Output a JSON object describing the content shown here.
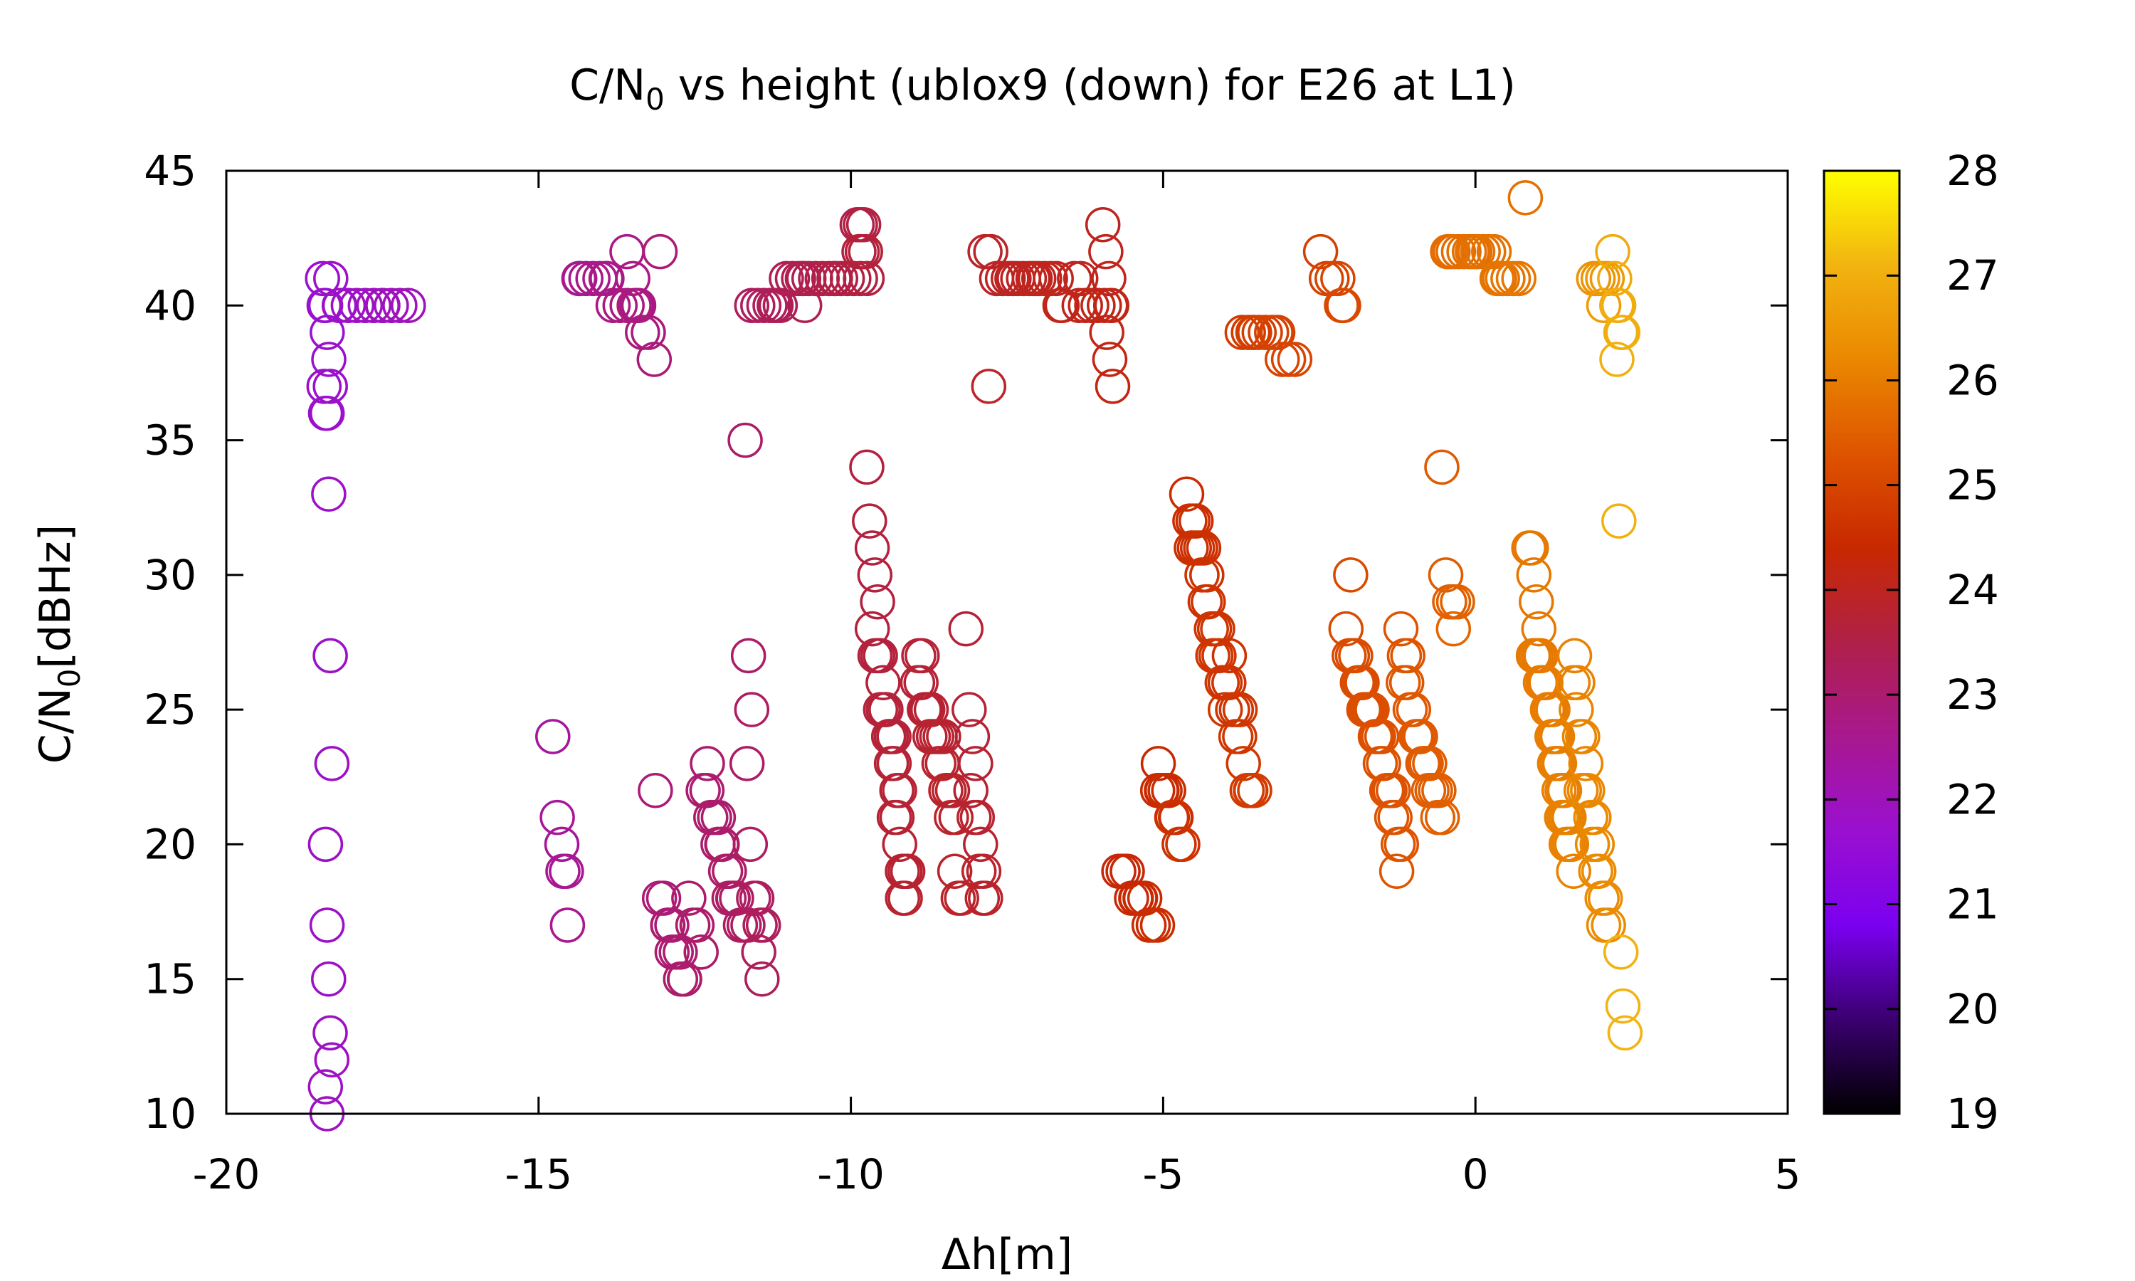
{
  "chart_data": {
    "type": "scatter",
    "title_parts": [
      "C/N",
      "0",
      " vs height (ublox9 (down) for E26 at L1)"
    ],
    "xlabel": "Δh[m]",
    "ylabel_parts": [
      "C/N",
      "0",
      "[dBHz]"
    ],
    "xlim": [
      -20,
      5
    ],
    "ylim": [
      10,
      45
    ],
    "x_ticks": [
      "-20",
      "-15",
      "-10",
      "-5",
      "0",
      "5"
    ],
    "x_tick_values": [
      -20,
      -15,
      -10,
      -5,
      0,
      5
    ],
    "y_ticks": [
      "10",
      "15",
      "20",
      "25",
      "30",
      "35",
      "40",
      "45"
    ],
    "y_tick_values": [
      10,
      15,
      20,
      25,
      30,
      35,
      40,
      45
    ],
    "colorbar": {
      "range": [
        19,
        28
      ],
      "ticks": [
        "19",
        "20",
        "21",
        "22",
        "23",
        "24",
        "25",
        "26",
        "27",
        "28"
      ],
      "tick_values": [
        19,
        20,
        21,
        22,
        23,
        24,
        25,
        26,
        27,
        28
      ],
      "palette": "black-purple-red-orange-yellow",
      "colors": [
        "#000000",
        "#3a0070",
        "#7a00f0",
        "#9a10d0",
        "#a8188f",
        "#b02048",
        "#c82800",
        "#de5400",
        "#ea8800",
        "#f2b410",
        "#ffff00"
      ]
    },
    "marker": "open-circle",
    "grid": false,
    "legend": "none",
    "clusters": [
      {
        "x": -18.4,
        "xs": [
          0,
          0.05
        ],
        "c": 21.8,
        "y": [
          41,
          40,
          40,
          39,
          38,
          37,
          37,
          36,
          36,
          33,
          27,
          23,
          20,
          17,
          15,
          13,
          12,
          11,
          10
        ]
      },
      {
        "x": -17.9,
        "xs": [
          0.45,
          0.8
        ],
        "c": 21.9,
        "y": [
          41,
          40,
          40,
          40,
          40,
          40,
          40,
          40,
          40,
          40,
          40,
          40
        ]
      },
      {
        "x": -14.6,
        "xs": [
          0.15,
          0.1
        ],
        "c": 22.5,
        "y": [
          24,
          21,
          20,
          19,
          19,
          17
        ]
      },
      {
        "x": -14.0,
        "xs": [
          0.4,
          0.5
        ],
        "c": 22.7,
        "y": [
          41,
          41,
          41,
          41,
          41,
          41,
          41,
          40,
          40,
          40,
          40
        ]
      },
      {
        "x": -13.4,
        "xs": [
          0.2,
          0.3
        ],
        "c": 22.8,
        "y": [
          42,
          41,
          40,
          40,
          39,
          39,
          38,
          42
        ]
      },
      {
        "x": -12.8,
        "xs": [
          0.3,
          0.35
        ],
        "c": 23.0,
        "y": [
          22,
          18,
          18,
          17,
          17,
          17,
          16,
          16,
          16,
          15,
          15,
          15,
          18,
          17,
          17,
          16
        ]
      },
      {
        "x": -12.0,
        "xs": [
          0.35,
          0.3
        ],
        "c": 23.1,
        "y": [
          23,
          22,
          22,
          21,
          21,
          21,
          20,
          20,
          20,
          19,
          19,
          18,
          18,
          18,
          18,
          17,
          17,
          17
        ]
      },
      {
        "x": -11.6,
        "xs": [
          0.1,
          0.2
        ],
        "c": 23.2,
        "y": [
          35,
          27,
          25,
          23,
          20,
          18,
          18,
          17,
          17,
          16,
          15
        ]
      },
      {
        "x": -11.2,
        "xs": [
          0.35,
          0.4
        ],
        "c": 23.3,
        "y": [
          40,
          40,
          40,
          40,
          40,
          40,
          40,
          41,
          41,
          41,
          40
        ]
      },
      {
        "x": -10.3,
        "xs": [
          0.5,
          0.5
        ],
        "c": 23.5,
        "y": [
          41,
          41,
          41,
          41,
          41,
          41,
          41,
          41,
          41,
          41,
          41,
          41,
          41
        ]
      },
      {
        "x": -9.8,
        "xs": [
          0.1,
          0.05
        ],
        "c": 23.6,
        "y": [
          43,
          43,
          43,
          42,
          42,
          42
        ]
      },
      {
        "x": -9.4,
        "xs": [
          0.3,
          0.3
        ],
        "c": 23.7,
        "y": [
          34,
          32,
          31,
          30,
          29,
          28,
          27,
          27,
          27,
          26,
          25,
          25,
          25,
          25,
          24,
          24,
          24,
          24,
          23,
          23,
          22,
          22,
          21,
          21,
          20,
          19,
          19,
          19,
          18,
          18
        ]
      },
      {
        "x": -8.6,
        "xs": [
          0.35,
          0.35
        ],
        "c": 23.8,
        "y": [
          27,
          27,
          26,
          26,
          25,
          25,
          25,
          25,
          24,
          24,
          24,
          24,
          24,
          23,
          23,
          22,
          22,
          22,
          21,
          21,
          19,
          18,
          18
        ]
      },
      {
        "x": -8.0,
        "xs": [
          0.15,
          0.2
        ],
        "c": 23.8,
        "y": [
          28,
          25,
          24,
          23,
          22,
          21,
          21,
          20,
          19,
          19,
          18,
          18,
          37
        ]
      },
      {
        "x": -7.2,
        "xs": [
          0.6,
          0.6
        ],
        "c": 24.0,
        "y": [
          42,
          42,
          41,
          41,
          41,
          41,
          41,
          41,
          41,
          41,
          41,
          41,
          41,
          41,
          41,
          41,
          40,
          40
        ]
      },
      {
        "x": -6.2,
        "xs": [
          0.25,
          0.3
        ],
        "c": 24.1,
        "y": [
          41,
          41,
          40,
          40,
          40,
          40,
          40,
          40
        ]
      },
      {
        "x": -5.9,
        "xs": [
          0.05,
          0.1
        ],
        "c": 24.1,
        "y": [
          43,
          42,
          41,
          40,
          39,
          38,
          37
        ]
      },
      {
        "x": -5.4,
        "xs": [
          0.25,
          0.25
        ],
        "c": 24.4,
        "y": [
          19,
          19,
          19,
          18,
          18,
          18,
          18,
          18,
          18,
          17,
          17,
          17
        ]
      },
      {
        "x": -4.9,
        "xs": [
          0.2,
          0.2
        ],
        "c": 24.5,
        "y": [
          23,
          22,
          22,
          22,
          22,
          22,
          21,
          21,
          21,
          21,
          20,
          20
        ]
      },
      {
        "x": -4.3,
        "xs": [
          0.3,
          0.25
        ],
        "c": 24.6,
        "y": [
          33,
          32,
          32,
          32,
          31,
          31,
          31,
          31,
          31,
          30,
          30,
          29,
          29,
          28,
          28,
          28,
          27,
          27,
          27,
          26,
          25
        ]
      },
      {
        "x": -3.8,
        "xs": [
          0.2,
          0.25
        ],
        "c": 24.7,
        "y": [
          27,
          26,
          26,
          25,
          25,
          25,
          24,
          24,
          23,
          22,
          22,
          22,
          22
        ]
      },
      {
        "x": -3.3,
        "xs": [
          0.45,
          0.4
        ],
        "c": 24.9,
        "y": [
          39,
          39,
          39,
          39,
          39,
          39,
          39,
          39,
          39,
          38,
          38,
          38
        ]
      },
      {
        "x": -2.3,
        "xs": [
          0.15,
          0.2
        ],
        "c": 25.0,
        "y": [
          42,
          41,
          41,
          41,
          40,
          40
        ]
      },
      {
        "x": -1.7,
        "xs": [
          0.35,
          0.5
        ],
        "c": 25.2,
        "y": [
          30,
          28,
          27,
          27,
          27,
          26,
          26,
          26,
          26,
          25,
          25,
          25,
          25,
          25,
          25,
          24,
          24,
          24,
          24,
          23,
          23,
          22,
          22,
          22,
          22,
          21,
          21,
          20,
          20,
          19
        ]
      },
      {
        "x": -0.9,
        "xs": [
          0.3,
          0.35
        ],
        "c": 25.4,
        "y": [
          28,
          27,
          27,
          26,
          26,
          25,
          25,
          24,
          24,
          24,
          24,
          23,
          23,
          23,
          23,
          22,
          22,
          22,
          22,
          21,
          21
        ]
      },
      {
        "x": -0.4,
        "xs": [
          0.1,
          0.1
        ],
        "c": 25.5,
        "y": [
          34,
          30,
          29,
          29,
          29,
          28
        ]
      },
      {
        "x": 0.1,
        "xs": [
          0.55,
          0.55
        ],
        "c": 25.8,
        "y": [
          42,
          42,
          42,
          42,
          42,
          42,
          42,
          42,
          42,
          42,
          42,
          42,
          41,
          41,
          41,
          41,
          41,
          41
        ]
      },
      {
        "x": 0.8,
        "xs": [
          0.05,
          0.05
        ],
        "c": 25.8,
        "y": [
          44
        ]
      },
      {
        "x": 1.2,
        "xs": [
          0.3,
          0.35
        ],
        "c": 26.0,
        "y": [
          31,
          31,
          30,
          29,
          28,
          27,
          27,
          27,
          27,
          26,
          26,
          26,
          26,
          26,
          25,
          25,
          25,
          25,
          25,
          24,
          24,
          24,
          24,
          23,
          23,
          23,
          22,
          22,
          22,
          21,
          21,
          21,
          21,
          20,
          20,
          20,
          20,
          19
        ]
      },
      {
        "x": 1.8,
        "xs": [
          0.25,
          0.3
        ],
        "c": 26.2,
        "y": [
          27,
          26,
          26,
          25,
          24,
          24,
          23,
          22,
          22,
          22,
          21,
          21,
          20,
          20,
          19,
          19,
          18,
          18,
          17,
          17
        ]
      },
      {
        "x": 2.0,
        "xs": [
          0.1,
          0.1
        ],
        "c": 26.5,
        "y": [
          41,
          41,
          41,
          41,
          40
        ]
      },
      {
        "x": 2.3,
        "xs": [
          0.05,
          0.05
        ],
        "c": 27.0,
        "y": [
          42,
          41,
          40,
          40,
          39,
          39,
          38,
          32,
          16,
          14,
          13
        ]
      }
    ]
  }
}
